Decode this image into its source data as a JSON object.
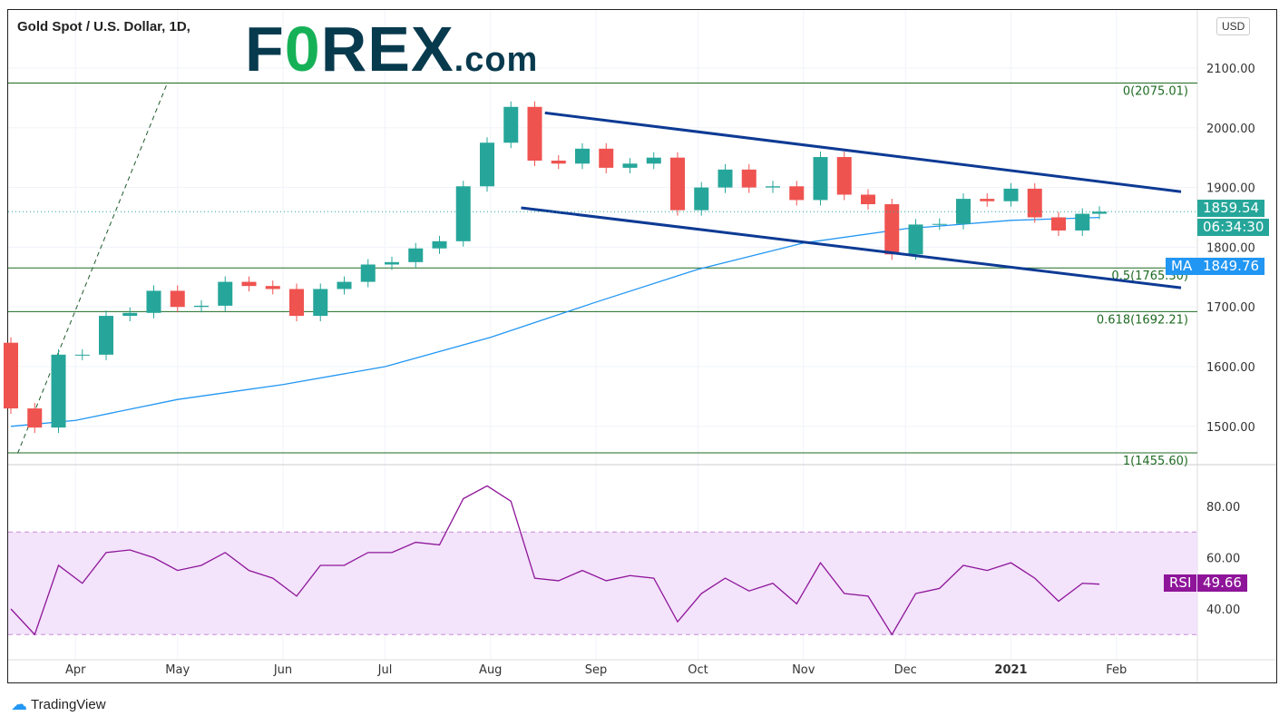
{
  "header": {
    "title": "Gold Spot / U.S. Dollar, 1D,",
    "logo": "FOREX.com",
    "currency": "USD"
  },
  "footer": {
    "brand": "TradingView"
  },
  "labels": {
    "last_price": "1859.54",
    "countdown": "06:34:30",
    "ma_name": "MA",
    "ma_value": "1849.76",
    "rsi_name": "RSI",
    "rsi_value": "49.66"
  },
  "colors": {
    "up": "#26a69a",
    "down": "#ef5350",
    "ma": "#2196f3",
    "rsi": "#8e1599",
    "channel": "#0d3a94",
    "fib": "#1e6b22"
  },
  "chart_data": [
    {
      "type": "candlestick",
      "title": "Gold Spot / U.S. Dollar, 1D,",
      "ylim": [
        1440,
        2180
      ],
      "yticks": [
        1500,
        1600,
        1700,
        1800,
        1900,
        2000,
        2100
      ],
      "xticks": [
        {
          "label": "Apr",
          "date": "2020-04-01"
        },
        {
          "label": "May",
          "date": "2020-05-01"
        },
        {
          "label": "Jun",
          "date": "2020-06-01"
        },
        {
          "label": "Jul",
          "date": "2020-07-01"
        },
        {
          "label": "Aug",
          "date": "2020-08-01"
        },
        {
          "label": "Sep",
          "date": "2020-09-01"
        },
        {
          "label": "Oct",
          "date": "2020-10-01"
        },
        {
          "label": "Nov",
          "date": "2020-11-01"
        },
        {
          "label": "Dec",
          "date": "2020-12-01"
        },
        {
          "label": "2021",
          "date": "2021-01-01"
        },
        {
          "label": "Feb",
          "date": "2021-02-01"
        }
      ],
      "dates": [
        "2020-03-13",
        "2020-03-20",
        "2020-03-27",
        "2020-04-03",
        "2020-04-10",
        "2020-04-17",
        "2020-04-24",
        "2020-05-01",
        "2020-05-08",
        "2020-05-15",
        "2020-05-22",
        "2020-05-29",
        "2020-06-05",
        "2020-06-12",
        "2020-06-19",
        "2020-06-26",
        "2020-07-03",
        "2020-07-10",
        "2020-07-17",
        "2020-07-24",
        "2020-07-31",
        "2020-08-07",
        "2020-08-14",
        "2020-08-21",
        "2020-08-28",
        "2020-09-04",
        "2020-09-11",
        "2020-09-18",
        "2020-09-25",
        "2020-10-02",
        "2020-10-09",
        "2020-10-16",
        "2020-10-23",
        "2020-10-30",
        "2020-11-06",
        "2020-11-13",
        "2020-11-20",
        "2020-11-27",
        "2020-12-04",
        "2020-12-11",
        "2020-12-18",
        "2020-12-25",
        "2021-01-01",
        "2021-01-08",
        "2021-01-15",
        "2021-01-22",
        "2021-01-27"
      ],
      "close": [
        1530,
        1498,
        1620,
        1620,
        1685,
        1690,
        1727,
        1700,
        1702,
        1742,
        1735,
        1730,
        1685,
        1730,
        1742,
        1771,
        1775,
        1798,
        1810,
        1902,
        1975,
        2035,
        1945,
        1940,
        1965,
        1933,
        1940,
        1950,
        1862,
        1900,
        1930,
        1900,
        1902,
        1879,
        1951,
        1888,
        1872,
        1788,
        1838,
        1839,
        1881,
        1877,
        1898,
        1850,
        1828,
        1856,
        1859.54
      ],
      "open_first": 1640,
      "ma": {
        "name": "MA",
        "dates": [
          "2020-03-13",
          "2020-04-01",
          "2020-05-01",
          "2020-06-01",
          "2020-07-01",
          "2020-08-01",
          "2020-09-01",
          "2020-10-01",
          "2020-11-01",
          "2020-12-01",
          "2021-01-01",
          "2021-01-27"
        ],
        "values": [
          1500,
          1510,
          1545,
          1570,
          1600,
          1649,
          1708,
          1763,
          1807,
          1831,
          1845,
          1849.76
        ]
      },
      "fib_levels": [
        {
          "label": "0(2075.01)",
          "value": 2075.01
        },
        {
          "label": "0.5(1765.30)",
          "value": 1765.3
        },
        {
          "label": "0.618(1692.21)",
          "value": 1692.21
        },
        {
          "label": "1(1455.60)",
          "value": 1455.6
        }
      ],
      "channel": [
        {
          "from": [
            "2020-08-17",
            2025
          ],
          "to": [
            "2021-02-20",
            1893
          ]
        },
        {
          "from": [
            "2020-08-10",
            1866
          ],
          "to": [
            "2021-02-20",
            1732
          ]
        }
      ],
      "trendline_dashed": {
        "from": [
          "2020-03-15",
          1455
        ],
        "to": [
          "2020-04-28",
          2075
        ]
      }
    },
    {
      "type": "line",
      "title": "RSI",
      "ylim": [
        25,
        95
      ],
      "yticks": [
        40,
        60,
        80
      ],
      "band": [
        30,
        70
      ],
      "dates": [
        "2020-03-13",
        "2020-03-20",
        "2020-03-27",
        "2020-04-03",
        "2020-04-10",
        "2020-04-17",
        "2020-04-24",
        "2020-05-01",
        "2020-05-08",
        "2020-05-15",
        "2020-05-22",
        "2020-05-29",
        "2020-06-05",
        "2020-06-12",
        "2020-06-19",
        "2020-06-26",
        "2020-07-03",
        "2020-07-10",
        "2020-07-17",
        "2020-07-24",
        "2020-07-31",
        "2020-08-07",
        "2020-08-14",
        "2020-08-21",
        "2020-08-28",
        "2020-09-04",
        "2020-09-11",
        "2020-09-18",
        "2020-09-25",
        "2020-10-02",
        "2020-10-09",
        "2020-10-16",
        "2020-10-23",
        "2020-10-30",
        "2020-11-06",
        "2020-11-13",
        "2020-11-20",
        "2020-11-27",
        "2020-12-04",
        "2020-12-11",
        "2020-12-18",
        "2020-12-25",
        "2021-01-01",
        "2021-01-08",
        "2021-01-15",
        "2021-01-22",
        "2021-01-27"
      ],
      "values": [
        40,
        30,
        57,
        50,
        62,
        63,
        60,
        55,
        57,
        62,
        55,
        52,
        45,
        57,
        57,
        62,
        62,
        66,
        65,
        83,
        88,
        82,
        52,
        51,
        55,
        51,
        53,
        52,
        35,
        46,
        52,
        47,
        50,
        42,
        58,
        46,
        45,
        30,
        46,
        48,
        57,
        55,
        58,
        52,
        43,
        50,
        49.66
      ]
    }
  ]
}
